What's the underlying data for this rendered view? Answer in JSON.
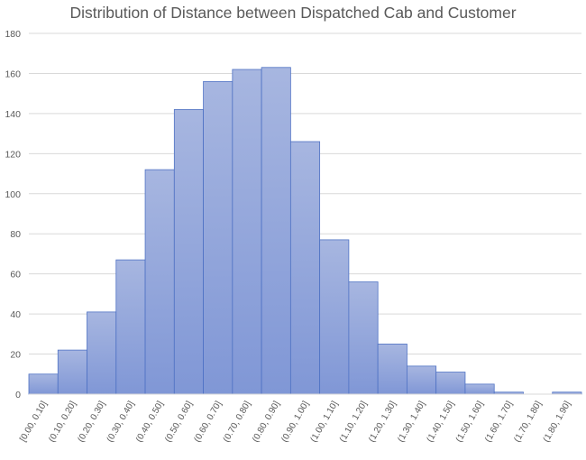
{
  "chart_data": {
    "type": "bar",
    "title": "Distribution of Distance between Dispatched Cab and Customer",
    "xlabel": "",
    "ylabel": "",
    "categories": [
      "[0.00, 0.10]",
      "(0.10, 0.20]",
      "(0.20, 0.30]",
      "(0.30, 0.40]",
      "(0.40, 0.50]",
      "(0.50, 0.60]",
      "(0.60, 0.70]",
      "(0.70, 0.80]",
      "(0.80, 0.90]",
      "(0.90, 1.00]",
      "(1.00, 1.10]",
      "(1.10, 1.20]",
      "(1.20, 1.30]",
      "(1.30, 1.40]",
      "(1.40, 1.50]",
      "(1.50, 1.60]",
      "(1.60, 1.70]",
      "(1.70, 1.80]",
      "(1.80, 1.90]"
    ],
    "values": [
      10,
      22,
      41,
      67,
      112,
      142,
      156,
      162,
      163,
      126,
      77,
      56,
      25,
      14,
      11,
      5,
      1,
      0,
      1
    ],
    "ylim": [
      0,
      180
    ],
    "yticks": [
      0,
      20,
      40,
      60,
      80,
      100,
      120,
      140,
      160,
      180
    ],
    "grid": true,
    "bar_gap": 0,
    "colors": {
      "bar_top": "#a7b6e0",
      "bar_bottom": "#8097d6",
      "bar_stroke": "#4f72c4",
      "grid": "#d9d9d9",
      "axis": "#d9d9d9"
    }
  }
}
